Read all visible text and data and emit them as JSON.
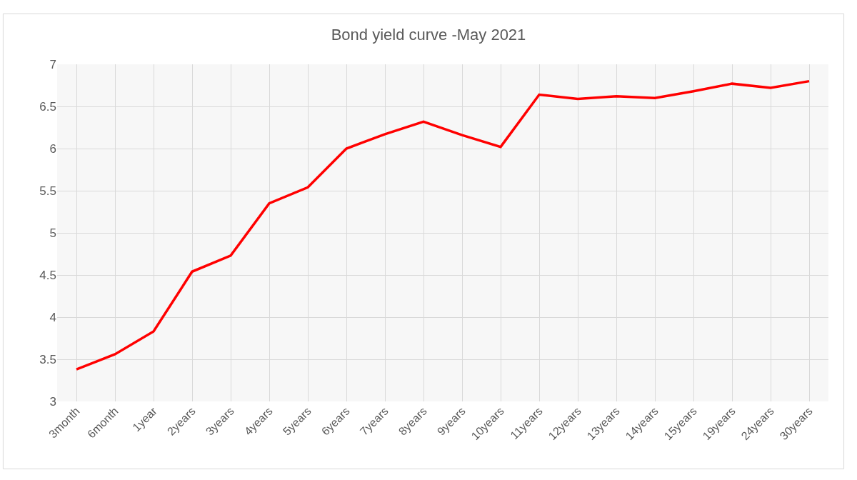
{
  "chart_data": {
    "type": "line",
    "title": "Bond yield curve -May 2021",
    "categories": [
      "3month",
      "6month",
      "1year",
      "2years",
      "3years",
      "4years",
      "5years",
      "6years",
      "7years",
      "8years",
      "9years",
      "10years",
      "11years",
      "12years",
      "13years",
      "14years",
      "15years",
      "19years",
      "24years",
      "30years"
    ],
    "series": [
      {
        "color": "#ff0000",
        "values": [
          3.38,
          3.56,
          3.83,
          4.54,
          4.73,
          5.35,
          5.54,
          6.0,
          6.17,
          6.32,
          6.16,
          6.02,
          6.64,
          6.59,
          6.62,
          6.6,
          6.68,
          6.77,
          6.72,
          6.8
        ]
      }
    ],
    "ylim": [
      3,
      7
    ],
    "yticks": [
      3,
      3.5,
      4,
      4.5,
      5,
      5.5,
      6,
      6.5,
      7
    ],
    "grid": true,
    "marker": "none",
    "line_style": "solid"
  }
}
